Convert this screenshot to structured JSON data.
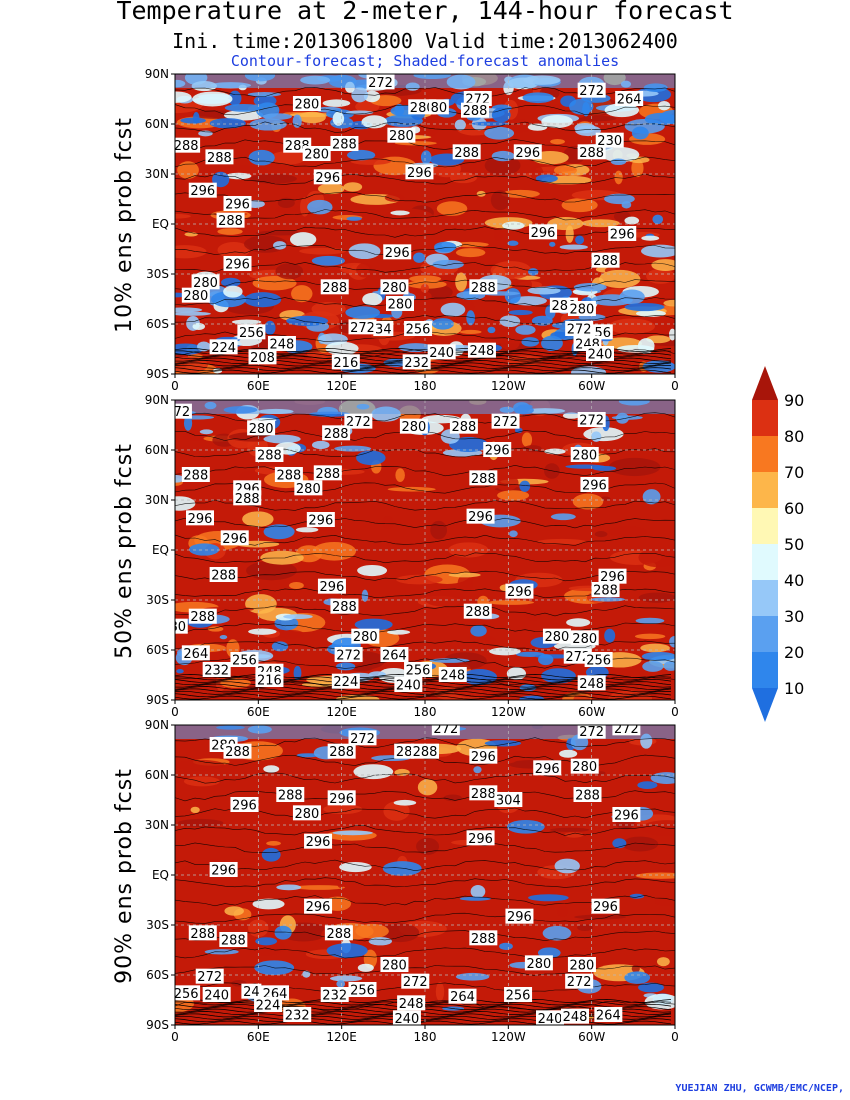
{
  "header": {
    "title": "Temperature at 2-meter, 144-hour forecast",
    "subtitle": "Ini. time:2013061800    Valid time:2013062400",
    "description": "Contour-forecast; Shaded-forecast anomalies"
  },
  "axes": {
    "lat_ticks": [
      "90N",
      "60N",
      "30N",
      "EQ",
      "30S",
      "60S",
      "90S"
    ],
    "lon_ticks": [
      "0",
      "60E",
      "120E",
      "180",
      "120W",
      "60W",
      "0"
    ]
  },
  "colors": {
    "map_base": "#c41a08",
    "colorbar": [
      "#1f6fe0",
      "#2f86ec",
      "#5aa0f0",
      "#96c8f8",
      "#e0fafe",
      "#fff8b4",
      "#fdb64a",
      "#f87820",
      "#dc3012",
      "#a8150a"
    ]
  },
  "colorbar": {
    "labels": [
      "10",
      "20",
      "30",
      "40",
      "50",
      "60",
      "70",
      "80",
      "90"
    ]
  },
  "panels": [
    {
      "label": "10% ens prob fcst",
      "contour_labels": [
        {
          "text": "272",
          "lon": 148,
          "lat": 85
        },
        {
          "text": "280",
          "lon": 95,
          "lat": 72
        },
        {
          "text": "280",
          "lon": 178,
          "lat": 70
        },
        {
          "text": "80",
          "lon": 190,
          "lat": 70
        },
        {
          "text": "272",
          "lon": 218,
          "lat": 75
        },
        {
          "text": "288",
          "lon": 216,
          "lat": 68
        },
        {
          "text": "272",
          "lon": 300,
          "lat": 80
        },
        {
          "text": "264",
          "lon": 327,
          "lat": 75
        },
        {
          "text": "288",
          "lon": 8,
          "lat": 47
        },
        {
          "text": "288",
          "lon": 32,
          "lat": 40
        },
        {
          "text": "288",
          "lon": 88,
          "lat": 47
        },
        {
          "text": "280",
          "lon": 102,
          "lat": 42
        },
        {
          "text": "288",
          "lon": 122,
          "lat": 48
        },
        {
          "text": "280",
          "lon": 163,
          "lat": 53
        },
        {
          "text": "288",
          "lon": 210,
          "lat": 43
        },
        {
          "text": "296",
          "lon": 254,
          "lat": 43
        },
        {
          "text": "288",
          "lon": 300,
          "lat": 43
        },
        {
          "text": "230",
          "lon": 313,
          "lat": 50
        },
        {
          "text": "296",
          "lon": 110,
          "lat": 28
        },
        {
          "text": "296",
          "lon": 176,
          "lat": 31
        },
        {
          "text": "296",
          "lon": 20,
          "lat": 20
        },
        {
          "text": "296",
          "lon": 45,
          "lat": 12
        },
        {
          "text": "288",
          "lon": 40,
          "lat": 2
        },
        {
          "text": "296",
          "lon": 265,
          "lat": -5
        },
        {
          "text": "296",
          "lon": 322,
          "lat": -6
        },
        {
          "text": "296",
          "lon": 160,
          "lat": -17
        },
        {
          "text": "296",
          "lon": 45,
          "lat": -24
        },
        {
          "text": "288",
          "lon": 310,
          "lat": -22
        },
        {
          "text": "280",
          "lon": 22,
          "lat": -35
        },
        {
          "text": "280",
          "lon": 15,
          "lat": -43
        },
        {
          "text": "288",
          "lon": 115,
          "lat": -38
        },
        {
          "text": "280",
          "lon": 158,
          "lat": -38
        },
        {
          "text": "280",
          "lon": 162,
          "lat": -48
        },
        {
          "text": "288",
          "lon": 222,
          "lat": -38
        },
        {
          "text": "280",
          "lon": 280,
          "lat": -49
        },
        {
          "text": "280",
          "lon": 293,
          "lat": -51
        },
        {
          "text": "256",
          "lon": 55,
          "lat": -65
        },
        {
          "text": "272",
          "lon": 135,
          "lat": -62
        },
        {
          "text": "34",
          "lon": 150,
          "lat": -63
        },
        {
          "text": "256",
          "lon": 175,
          "lat": -63
        },
        {
          "text": "272",
          "lon": 291,
          "lat": -63
        },
        {
          "text": "56",
          "lon": 308,
          "lat": -65
        },
        {
          "text": "224",
          "lon": 35,
          "lat": -74
        },
        {
          "text": "248",
          "lon": 77,
          "lat": -72
        },
        {
          "text": "208",
          "lon": 63,
          "lat": -80
        },
        {
          "text": "216",
          "lon": 123,
          "lat": -83
        },
        {
          "text": "232",
          "lon": 174,
          "lat": -83
        },
        {
          "text": "240",
          "lon": 192,
          "lat": -77
        },
        {
          "text": "248",
          "lon": 221,
          "lat": -76
        },
        {
          "text": "248",
          "lon": 297,
          "lat": -72
        },
        {
          "text": "240",
          "lon": 306,
          "lat": -78
        }
      ]
    },
    {
      "label": "50% ens prob fcst",
      "contour_labels": [
        {
          "text": "72",
          "lon": 5,
          "lat": 83
        },
        {
          "text": "280",
          "lon": 62,
          "lat": 73
        },
        {
          "text": "272",
          "lon": 132,
          "lat": 77
        },
        {
          "text": "288",
          "lon": 116,
          "lat": 70
        },
        {
          "text": "280",
          "lon": 172,
          "lat": 74
        },
        {
          "text": "288",
          "lon": 208,
          "lat": 74
        },
        {
          "text": "272",
          "lon": 238,
          "lat": 77
        },
        {
          "text": "272",
          "lon": 300,
          "lat": 78
        },
        {
          "text": "288",
          "lon": 68,
          "lat": 57
        },
        {
          "text": "296",
          "lon": 232,
          "lat": 60
        },
        {
          "text": "280",
          "lon": 295,
          "lat": 57
        },
        {
          "text": "288",
          "lon": 15,
          "lat": 45
        },
        {
          "text": "288",
          "lon": 82,
          "lat": 45
        },
        {
          "text": "288",
          "lon": 110,
          "lat": 46
        },
        {
          "text": "288",
          "lon": 222,
          "lat": 43
        },
        {
          "text": "296",
          "lon": 52,
          "lat": 37
        },
        {
          "text": "280",
          "lon": 96,
          "lat": 37
        },
        {
          "text": "288",
          "lon": 52,
          "lat": 31
        },
        {
          "text": "296",
          "lon": 302,
          "lat": 39
        },
        {
          "text": "296",
          "lon": 18,
          "lat": 19
        },
        {
          "text": "296",
          "lon": 105,
          "lat": 18
        },
        {
          "text": "296",
          "lon": 220,
          "lat": 20
        },
        {
          "text": "296",
          "lon": 43,
          "lat": 7
        },
        {
          "text": "288",
          "lon": 35,
          "lat": -15
        },
        {
          "text": "296",
          "lon": 113,
          "lat": -22
        },
        {
          "text": "296",
          "lon": 248,
          "lat": -25
        },
        {
          "text": "296",
          "lon": 315,
          "lat": -16
        },
        {
          "text": "288",
          "lon": 310,
          "lat": -24
        },
        {
          "text": "288",
          "lon": 122,
          "lat": -34
        },
        {
          "text": "288",
          "lon": 218,
          "lat": -37
        },
        {
          "text": "288",
          "lon": 20,
          "lat": -40
        },
        {
          "text": "80",
          "lon": 2,
          "lat": -46
        },
        {
          "text": "280",
          "lon": 137,
          "lat": -52
        },
        {
          "text": "280",
          "lon": 275,
          "lat": -52
        },
        {
          "text": "280",
          "lon": 295,
          "lat": -53
        },
        {
          "text": "264",
          "lon": 15,
          "lat": -62
        },
        {
          "text": "256",
          "lon": 50,
          "lat": -66
        },
        {
          "text": "272",
          "lon": 125,
          "lat": -63
        },
        {
          "text": "264",
          "lon": 158,
          "lat": -63
        },
        {
          "text": "272",
          "lon": 290,
          "lat": -64
        },
        {
          "text": "256",
          "lon": 305,
          "lat": -66
        },
        {
          "text": "232",
          "lon": 30,
          "lat": -72
        },
        {
          "text": "248",
          "lon": 68,
          "lat": -73
        },
        {
          "text": "216",
          "lon": 68,
          "lat": -78
        },
        {
          "text": "224",
          "lon": 123,
          "lat": -79
        },
        {
          "text": "256",
          "lon": 175,
          "lat": -72
        },
        {
          "text": "240",
          "lon": 168,
          "lat": -81
        },
        {
          "text": "248",
          "lon": 200,
          "lat": -75
        },
        {
          "text": "248",
          "lon": 300,
          "lat": -80
        }
      ]
    },
    {
      "label": "90% ens prob fcst",
      "contour_labels": [
        {
          "text": "272",
          "lon": 195,
          "lat": 88
        },
        {
          "text": "272",
          "lon": 300,
          "lat": 86
        },
        {
          "text": "272",
          "lon": 325,
          "lat": 88
        },
        {
          "text": "280",
          "lon": 35,
          "lat": 78
        },
        {
          "text": "272",
          "lon": 135,
          "lat": 82
        },
        {
          "text": "288",
          "lon": 45,
          "lat": 74
        },
        {
          "text": "288",
          "lon": 120,
          "lat": 74
        },
        {
          "text": "28",
          "lon": 165,
          "lat": 74
        },
        {
          "text": "288",
          "lon": 180,
          "lat": 74
        },
        {
          "text": "296",
          "lon": 222,
          "lat": 71
        },
        {
          "text": "296",
          "lon": 268,
          "lat": 64
        },
        {
          "text": "280",
          "lon": 295,
          "lat": 65
        },
        {
          "text": "288",
          "lon": 83,
          "lat": 48
        },
        {
          "text": "296",
          "lon": 120,
          "lat": 46
        },
        {
          "text": "288",
          "lon": 222,
          "lat": 49
        },
        {
          "text": "304",
          "lon": 240,
          "lat": 45
        },
        {
          "text": "288",
          "lon": 297,
          "lat": 48
        },
        {
          "text": "296",
          "lon": 50,
          "lat": 42
        },
        {
          "text": "280",
          "lon": 95,
          "lat": 37
        },
        {
          "text": "296",
          "lon": 325,
          "lat": 36
        },
        {
          "text": "296",
          "lon": 103,
          "lat": 20
        },
        {
          "text": "296",
          "lon": 220,
          "lat": 22
        },
        {
          "text": "296",
          "lon": 35,
          "lat": 3
        },
        {
          "text": "296",
          "lon": 103,
          "lat": -19
        },
        {
          "text": "296",
          "lon": 248,
          "lat": -25
        },
        {
          "text": "296",
          "lon": 310,
          "lat": -19
        },
        {
          "text": "288",
          "lon": 20,
          "lat": -35
        },
        {
          "text": "288",
          "lon": 42,
          "lat": -39
        },
        {
          "text": "288",
          "lon": 118,
          "lat": -35
        },
        {
          "text": "288",
          "lon": 222,
          "lat": -38
        },
        {
          "text": "280",
          "lon": 158,
          "lat": -54
        },
        {
          "text": "280",
          "lon": 262,
          "lat": -53
        },
        {
          "text": "280",
          "lon": 293,
          "lat": -54
        },
        {
          "text": "272",
          "lon": 25,
          "lat": -61
        },
        {
          "text": "272",
          "lon": 173,
          "lat": -64
        },
        {
          "text": "272",
          "lon": 291,
          "lat": -64
        },
        {
          "text": "256",
          "lon": 8,
          "lat": -71
        },
        {
          "text": "240",
          "lon": 30,
          "lat": -72
        },
        {
          "text": "24",
          "lon": 55,
          "lat": -70
        },
        {
          "text": "264",
          "lon": 72,
          "lat": -71
        },
        {
          "text": "232",
          "lon": 115,
          "lat": -72
        },
        {
          "text": "256",
          "lon": 135,
          "lat": -69
        },
        {
          "text": "248",
          "lon": 170,
          "lat": -77
        },
        {
          "text": "264",
          "lon": 207,
          "lat": -73
        },
        {
          "text": "256",
          "lon": 247,
          "lat": -72
        },
        {
          "text": "224",
          "lon": 67,
          "lat": -78
        },
        {
          "text": "232",
          "lon": 88,
          "lat": -84
        },
        {
          "text": "240",
          "lon": 167,
          "lat": -86
        },
        {
          "text": "240",
          "lon": 270,
          "lat": -86
        },
        {
          "text": "248",
          "lon": 288,
          "lat": -85
        },
        {
          "text": "264",
          "lon": 312,
          "lat": -84
        }
      ]
    }
  ],
  "footer": {
    "credit": "YUEJIAN ZHU, GCWMB/EMC/NCEP,"
  }
}
